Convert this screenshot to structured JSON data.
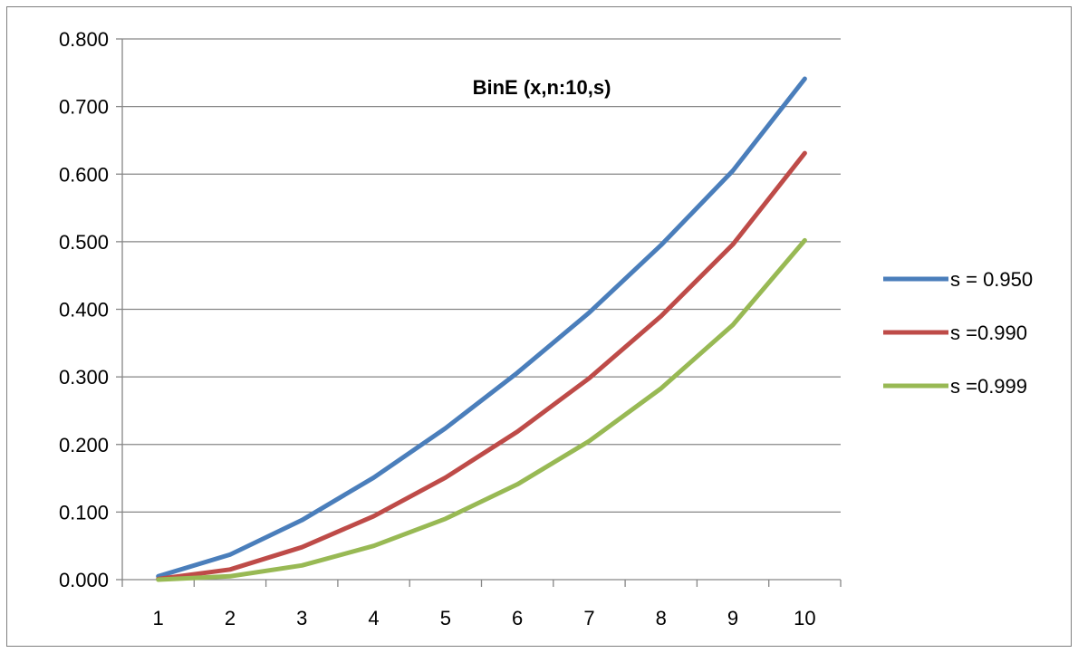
{
  "chart_data": {
    "type": "line",
    "title": "BinE (x,n:10,s)",
    "xlabel": "",
    "ylabel": "",
    "categories": [
      "1",
      "2",
      "3",
      "4",
      "5",
      "6",
      "7",
      "8",
      "9",
      "10"
    ],
    "ylim": [
      0,
      0.8
    ],
    "yticks": [
      "0.000",
      "0.100",
      "0.200",
      "0.300",
      "0.400",
      "0.500",
      "0.600",
      "0.700",
      "0.800"
    ],
    "grid": "horizontal",
    "legend_position": "right",
    "series": [
      {
        "name": "s = 0.950",
        "color": "#4a7ebb",
        "values": [
          0.005,
          0.037,
          0.088,
          0.151,
          0.224,
          0.306,
          0.395,
          0.495,
          0.605,
          0.741
        ]
      },
      {
        "name": "s =0.990",
        "color": "#be4b48",
        "values": [
          0.001,
          0.015,
          0.048,
          0.094,
          0.151,
          0.219,
          0.298,
          0.39,
          0.496,
          0.631
        ]
      },
      {
        "name": "s =0.999",
        "color": "#98b954",
        "values": [
          0.0,
          0.005,
          0.021,
          0.05,
          0.09,
          0.141,
          0.205,
          0.283,
          0.377,
          0.502
        ]
      }
    ]
  }
}
